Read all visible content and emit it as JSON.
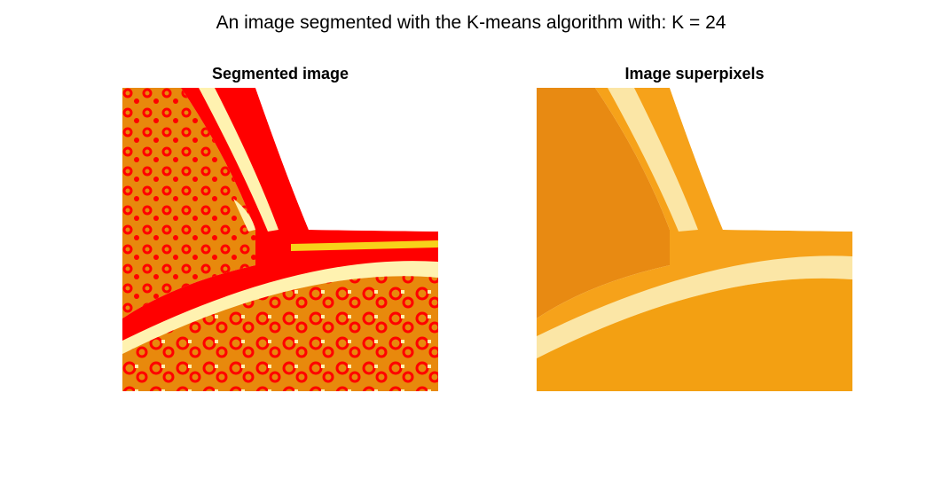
{
  "figure": {
    "title": "An image segmented with the K-means algorithm with: K = 24"
  },
  "panels": [
    {
      "title": "Segmented image",
      "image": "segmented-orange-image"
    },
    {
      "title": "Image superpixels",
      "image": "superpixel-orange-image"
    }
  ],
  "colors": {
    "background": "#ffffff",
    "segment_red": "#ff0000",
    "segment_orange": "#e8890c",
    "segment_cream": "#fff2b0",
    "superpixel_orange": "#f6a21a",
    "superpixel_light": "#fbe6a6"
  }
}
